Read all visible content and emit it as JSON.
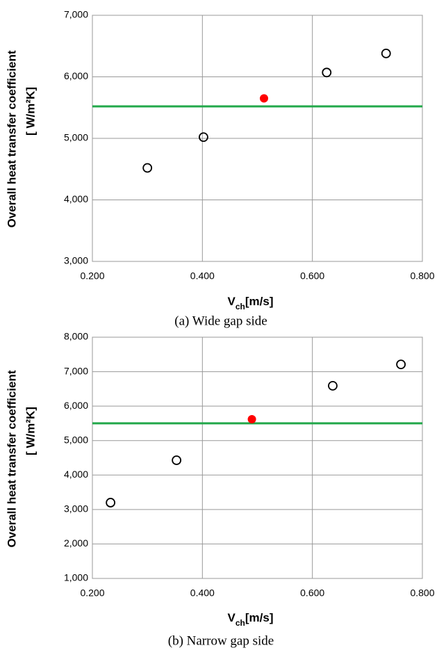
{
  "chart_data": [
    {
      "type": "scatter",
      "y_label": [
        "Overall heat transfer coefficient",
        "[ W/m²K]"
      ],
      "x_label": {
        "main": "V",
        "sub": "ch",
        "unit": "[m/s]"
      },
      "caption": "(a)  Wide  gap  side",
      "xlim": [
        0.2,
        0.8
      ],
      "xticks": [
        {
          "value": 0.2,
          "label": "0.200"
        },
        {
          "value": 0.4,
          "label": "0.400"
        },
        {
          "value": 0.6,
          "label": "0.600"
        },
        {
          "value": 0.8,
          "label": "0.800"
        }
      ],
      "ylim": [
        3000,
        7000
      ],
      "yticks": [
        {
          "value": 3000,
          "label": "3,000"
        },
        {
          "value": 4000,
          "label": "4,000"
        },
        {
          "value": 5000,
          "label": "5,000"
        },
        {
          "value": 6000,
          "label": "6,000"
        },
        {
          "value": 7000,
          "label": "7,000"
        }
      ],
      "grid": true,
      "points": {
        "x": [
          0.3,
          0.402,
          0.626,
          0.734
        ],
        "y": [
          4520,
          5020,
          6070,
          6380
        ],
        "color": "#000000"
      },
      "highlight": {
        "x": [
          0.512
        ],
        "y": [
          5650
        ],
        "color": "#ff0000"
      },
      "reference_line": {
        "y": 5520,
        "color": "#22a84a"
      }
    },
    {
      "type": "scatter",
      "y_label": [
        "Overall heat transfer coefficient",
        "[ W/m²K]"
      ],
      "x_label": {
        "main": "V",
        "sub": "ch",
        "unit": "[m/s]"
      },
      "caption": "(b)  Narrow  gap  side",
      "xlim": [
        0.2,
        0.8
      ],
      "xticks": [
        {
          "value": 0.2,
          "label": "0.200"
        },
        {
          "value": 0.4,
          "label": "0.400"
        },
        {
          "value": 0.6,
          "label": "0.600"
        },
        {
          "value": 0.8,
          "label": "0.800"
        }
      ],
      "ylim": [
        1000,
        8000
      ],
      "yticks": [
        {
          "value": 1000,
          "label": "1,000"
        },
        {
          "value": 2000,
          "label": "2,000"
        },
        {
          "value": 3000,
          "label": "3,000"
        },
        {
          "value": 4000,
          "label": "4,000"
        },
        {
          "value": 5000,
          "label": "5,000"
        },
        {
          "value": 6000,
          "label": "6,000"
        },
        {
          "value": 7000,
          "label": "7,000"
        },
        {
          "value": 8000,
          "label": "8,000"
        }
      ],
      "grid": true,
      "points": {
        "x": [
          0.233,
          0.353,
          0.637,
          0.761
        ],
        "y": [
          3200,
          4430,
          6590,
          7210
        ],
        "color": "#000000"
      },
      "highlight": {
        "x": [
          0.49
        ],
        "y": [
          5620
        ],
        "color": "#ff0000"
      },
      "reference_line": {
        "y": 5500,
        "color": "#22a84a"
      }
    }
  ]
}
